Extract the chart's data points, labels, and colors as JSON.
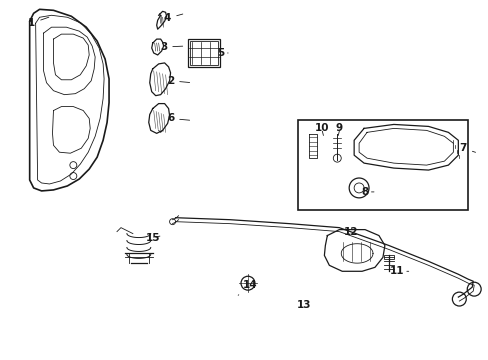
{
  "bg_color": "#ffffff",
  "line_color": "#1a1a1a",
  "label_color": "#1a1a1a",
  "fig_width": 4.89,
  "fig_height": 3.6,
  "dpi": 100,
  "label_fontsize": 7.5,
  "lw_main": 0.9,
  "lw_thin": 0.6,
  "lw_thick": 1.2
}
